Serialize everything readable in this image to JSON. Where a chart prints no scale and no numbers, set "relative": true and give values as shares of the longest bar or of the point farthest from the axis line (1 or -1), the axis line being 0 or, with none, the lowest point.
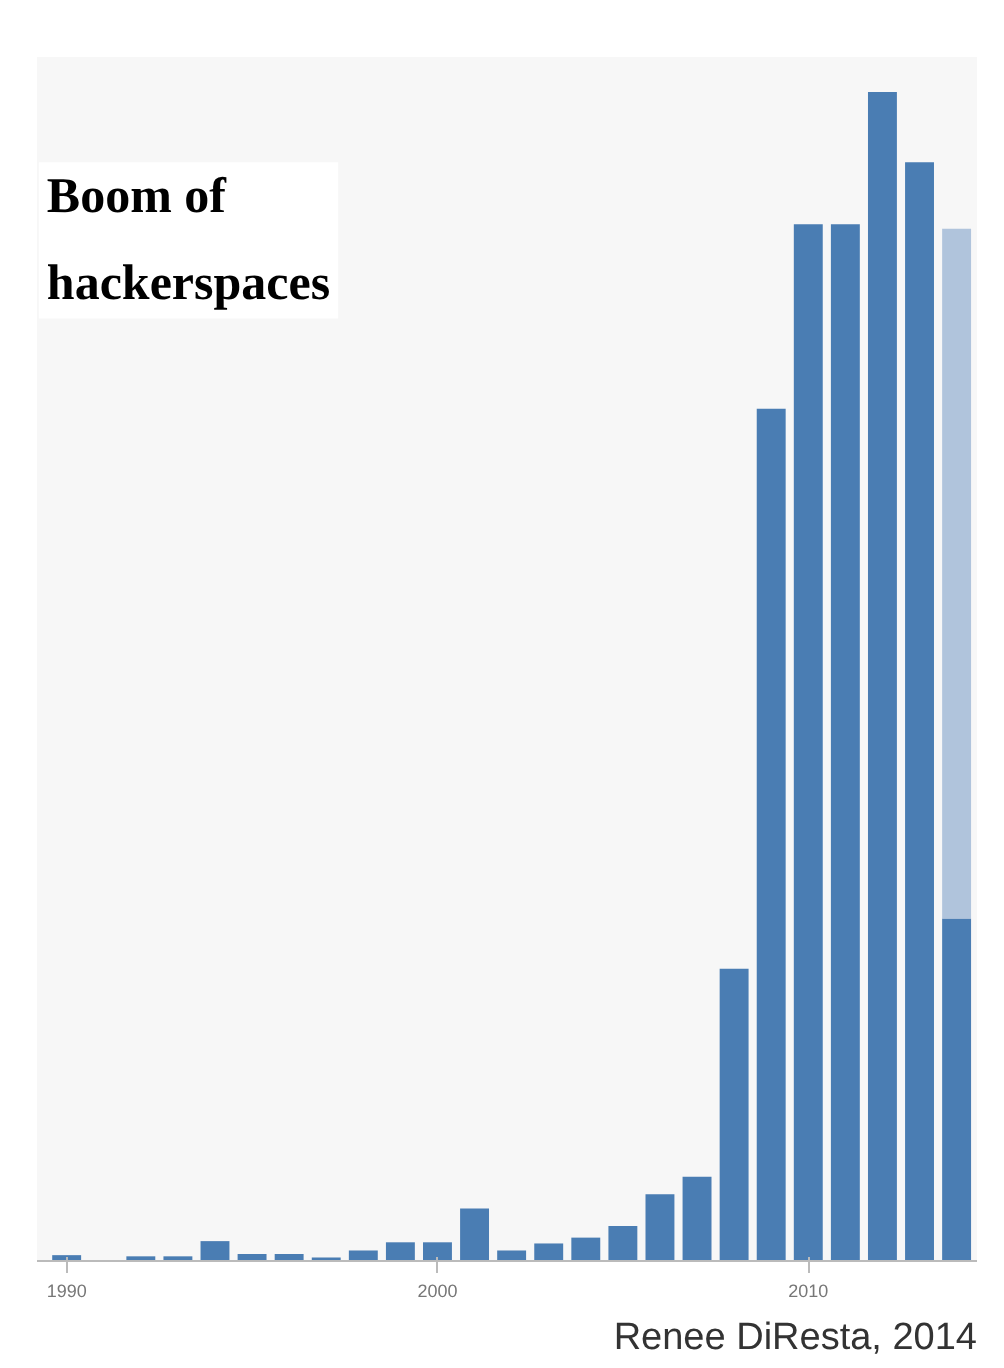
{
  "chart_data": {
    "type": "bar",
    "title": "Boom of\nhackerspaces",
    "relative": true,
    "stacked": true,
    "categories": [
      "1990",
      null,
      null,
      null,
      null,
      null,
      null,
      null,
      null,
      null,
      "2000",
      null,
      null,
      null,
      null,
      null,
      null,
      null,
      null,
      null,
      "2010",
      null,
      null,
      null,
      null
    ],
    "series": [
      {
        "color": "#4a7db3",
        "values": [
          0.005,
          0.0,
          0.004,
          0.004,
          0.017,
          0.006,
          0.006,
          0.003,
          0.009,
          0.016,
          0.016,
          0.045,
          0.009,
          0.015,
          0.02,
          0.03,
          0.057,
          0.072,
          0.25,
          0.729,
          0.887,
          0.887,
          1.0,
          0.94,
          0.293
        ]
      },
      {
        "color": "#b0c4dc",
        "values": [
          null,
          null,
          null,
          null,
          null,
          null,
          null,
          null,
          null,
          null,
          null,
          null,
          null,
          null,
          null,
          null,
          null,
          null,
          null,
          null,
          null,
          null,
          null,
          null,
          0.59
        ]
      }
    ],
    "annotations": [
      "Renee DiResta, 2014"
    ]
  }
}
